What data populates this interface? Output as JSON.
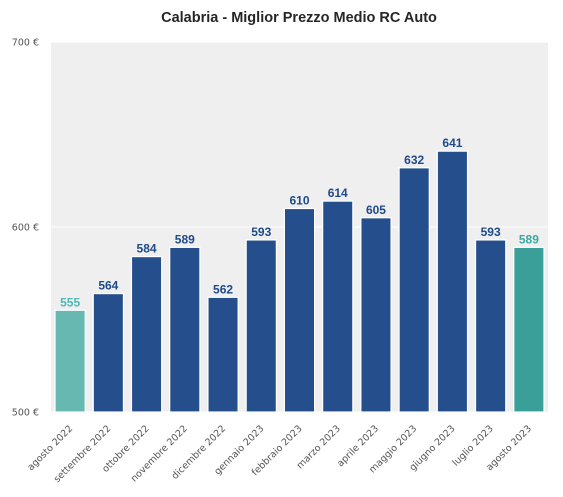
{
  "chart_data": {
    "type": "bar",
    "title": "Calabria - Miglior Prezzo Medio RC Auto",
    "xlabel": "",
    "ylabel": "",
    "ylim": [
      500,
      700
    ],
    "yticks": [
      500,
      600,
      700
    ],
    "ytick_labels": [
      "500 €",
      "600 €",
      "700 €"
    ],
    "grid": true,
    "categories": [
      "agosto 2022",
      "settembre 2022",
      "ottobre 2022",
      "novembre 2022",
      "dicembre 2022",
      "gennaio 2023",
      "febbraio 2023",
      "marzo 2023",
      "aprile 2023",
      "maggio 2023",
      "giugno 2023",
      "luglio 2023",
      "agosto 2023"
    ],
    "values": [
      555,
      564,
      584,
      589,
      562,
      593,
      610,
      614,
      605,
      632,
      641,
      593,
      589
    ],
    "data_labels": [
      "555",
      "564",
      "584",
      "589",
      "562",
      "593",
      "610",
      "614",
      "605",
      "632",
      "641",
      "593",
      "589"
    ],
    "bar_colors": [
      "#66b8b1",
      "#254f8c",
      "#254f8c",
      "#254f8c",
      "#254f8c",
      "#254f8c",
      "#254f8c",
      "#254f8c",
      "#254f8c",
      "#254f8c",
      "#254f8c",
      "#254f8c",
      "#3a9f98"
    ],
    "label_colors": [
      "#4dbab4",
      "#1f4a8a",
      "#1f4a8a",
      "#1f4a8a",
      "#1f4a8a",
      "#1f4a8a",
      "#1f4a8a",
      "#1f4a8a",
      "#1f4a8a",
      "#1f4a8a",
      "#1f4a8a",
      "#1f4a8a",
      "#3aa9a3"
    ],
    "plot_background": "#efefef",
    "grid_color": "#ffffff"
  }
}
